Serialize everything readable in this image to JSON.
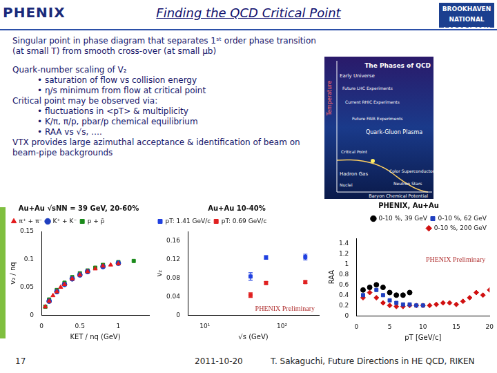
{
  "slide": {
    "title": "Finding the QCD Critical Point",
    "logos": [
      "PHENIX",
      "BROOKHAVEN",
      "NATIONAL LABORATORY"
    ],
    "text": [
      {
        "level": 0,
        "text": "Singular point in phase diagram that separates 1ˢᵗ order phase transition (at small T) from smooth cross-over (at small μb)"
      },
      {
        "level": 0,
        "text": "Quark-number scaling of V₂",
        "gap": true
      },
      {
        "level": 1,
        "text": "• saturation of flow vs collision energy"
      },
      {
        "level": 1,
        "text": "• η/s minimum from flow at critical point"
      },
      {
        "level": 0,
        "text": "Critical point may be observed via:"
      },
      {
        "level": 1,
        "text": "• fluctuations in <pT> & multiplicity"
      },
      {
        "level": 1,
        "text": "• K/π, π/p, pbar/p chemical equilibrium"
      },
      {
        "level": 1,
        "text": "• RAA vs √s, …."
      },
      {
        "level": 0,
        "text": "VTX provides large azimuthal acceptance & identification of beam on beam-pipe backgrounds"
      }
    ],
    "phase_diagram": {
      "title": "The Phases of QCD",
      "y_label": "Temperature",
      "x_label": "Baryon Chemical Potential",
      "labels": [
        "Early Universe",
        "Future LHC Experiments",
        "Current RHIC Experiments",
        "Future FAIR Experiments",
        "Critical Point",
        "Quark-Gluon Plasma",
        "Hadron Gas",
        "Nuclei",
        "Color Superconductor",
        "Neutron Stars"
      ]
    },
    "footer": {
      "page": "17",
      "date": "2011-10-20",
      "credit": "T. Sakaguchi, Future Directions in HE QCD, RIKEN"
    }
  },
  "chart_data": [
    {
      "type": "scatter",
      "title": "Au+Au √sNN = 39 GeV, 20-60%",
      "x_label": "KET / nq (GeV)",
      "y_label": "v₂ / nq",
      "xlim": [
        0,
        1.4
      ],
      "xticks": [
        0,
        0.5,
        1
      ],
      "ylim": [
        0,
        0.15
      ],
      "yticks": [
        0,
        0.05,
        0.1,
        0.15
      ],
      "grid": false,
      "legend": "top-left",
      "series": [
        {
          "name": "π⁺ + π⁻",
          "color": "#e31a1c",
          "marker": "triangle",
          "x": [
            0.05,
            0.1,
            0.15,
            0.2,
            0.25,
            0.3,
            0.4,
            0.5,
            0.6,
            0.7,
            0.8,
            0.9,
            1.0
          ],
          "values": [
            0.015,
            0.025,
            0.035,
            0.042,
            0.05,
            0.055,
            0.065,
            0.072,
            0.078,
            0.083,
            0.088,
            0.09,
            0.092
          ]
        },
        {
          "name": "K⁺ + K⁻",
          "color": "#1f3fbf",
          "marker": "circle",
          "x": [
            0.1,
            0.2,
            0.3,
            0.4,
            0.5,
            0.6,
            0.8,
            1.0
          ],
          "values": [
            0.025,
            0.042,
            0.055,
            0.065,
            0.072,
            0.078,
            0.087,
            0.093
          ]
        },
        {
          "name": "p + p̄",
          "color": "#1a8a1a",
          "marker": "square",
          "x": [
            0.05,
            0.1,
            0.2,
            0.3,
            0.4,
            0.5,
            0.6,
            0.7,
            0.8,
            1.0,
            1.2
          ],
          "values": [
            0.015,
            0.028,
            0.045,
            0.058,
            0.068,
            0.075,
            0.08,
            0.085,
            0.09,
            0.095,
            0.097
          ]
        }
      ]
    },
    {
      "type": "scatter",
      "title": "Au+Au 10-40%",
      "annotations": [
        "PHENIX Preliminary"
      ],
      "x_label": "√s (GeV)",
      "y_label": "v₂",
      "log": "x",
      "xlim": [
        6,
        300
      ],
      "xticks": [
        {
          "value": 10,
          "label": "10¹"
        },
        {
          "value": 100,
          "label": "10²"
        }
      ],
      "ylim": [
        0,
        0.18
      ],
      "yticks": [
        0,
        0.04,
        0.08,
        0.12,
        0.16
      ],
      "grid": false,
      "legend": "top-left",
      "series": [
        {
          "name": "pT: 1.41 GeV/c",
          "color": "#2040e0",
          "marker": "square",
          "x": [
            39,
            62,
            200
          ],
          "values": [
            0.083,
            0.124,
            0.125
          ],
          "errors": [
            0.008,
            0.004,
            0.006
          ]
        },
        {
          "name": "pT: 0.69 GeV/c",
          "color": "#e02020",
          "marker": "square",
          "x": [
            39,
            62,
            200
          ],
          "values": [
            0.043,
            0.069,
            0.071
          ],
          "errors": [
            0.005,
            0.003,
            0.003
          ]
        }
      ]
    },
    {
      "type": "scatter",
      "title": "PHENIX, Au+Au",
      "annotations": [
        "PHENIX Preliminary"
      ],
      "x_label": "pT [GeV/c]",
      "y_label": "RAA",
      "xlim": [
        0,
        20
      ],
      "xticks": [
        0,
        5,
        10,
        15,
        20
      ],
      "ylim": [
        0,
        1.5
      ],
      "yticks": [
        0,
        0.2,
        0.4,
        0.6,
        0.8,
        1,
        1.2,
        1.4
      ],
      "grid": false,
      "legend": "top-right",
      "series": [
        {
          "name": "0-10 %, 39 GeV",
          "color": "#000000",
          "marker": "circle",
          "x": [
            1,
            2,
            3,
            4,
            5,
            6,
            7,
            8
          ],
          "values": [
            0.5,
            0.55,
            0.6,
            0.55,
            0.45,
            0.4,
            0.4,
            0.45
          ]
        },
        {
          "name": "0-10 %, 62 GeV",
          "color": "#1f3fbf",
          "marker": "square",
          "x": [
            1,
            2,
            3,
            4,
            5,
            6,
            7,
            8,
            9,
            10
          ],
          "values": [
            0.4,
            0.55,
            0.5,
            0.4,
            0.3,
            0.25,
            0.22,
            0.22,
            0.2,
            0.2
          ]
        },
        {
          "name": "0-10 %, 200 GeV",
          "color": "#d01010",
          "marker": "diamond",
          "x": [
            1,
            2,
            3,
            4,
            5,
            6,
            7,
            8,
            9,
            10,
            11,
            12,
            13,
            14,
            15,
            16,
            17,
            18,
            19,
            20
          ],
          "values": [
            0.35,
            0.45,
            0.35,
            0.25,
            0.2,
            0.18,
            0.18,
            0.2,
            0.2,
            0.2,
            0.2,
            0.22,
            0.25,
            0.25,
            0.22,
            0.28,
            0.35,
            0.45,
            0.4,
            0.5
          ]
        }
      ]
    }
  ]
}
